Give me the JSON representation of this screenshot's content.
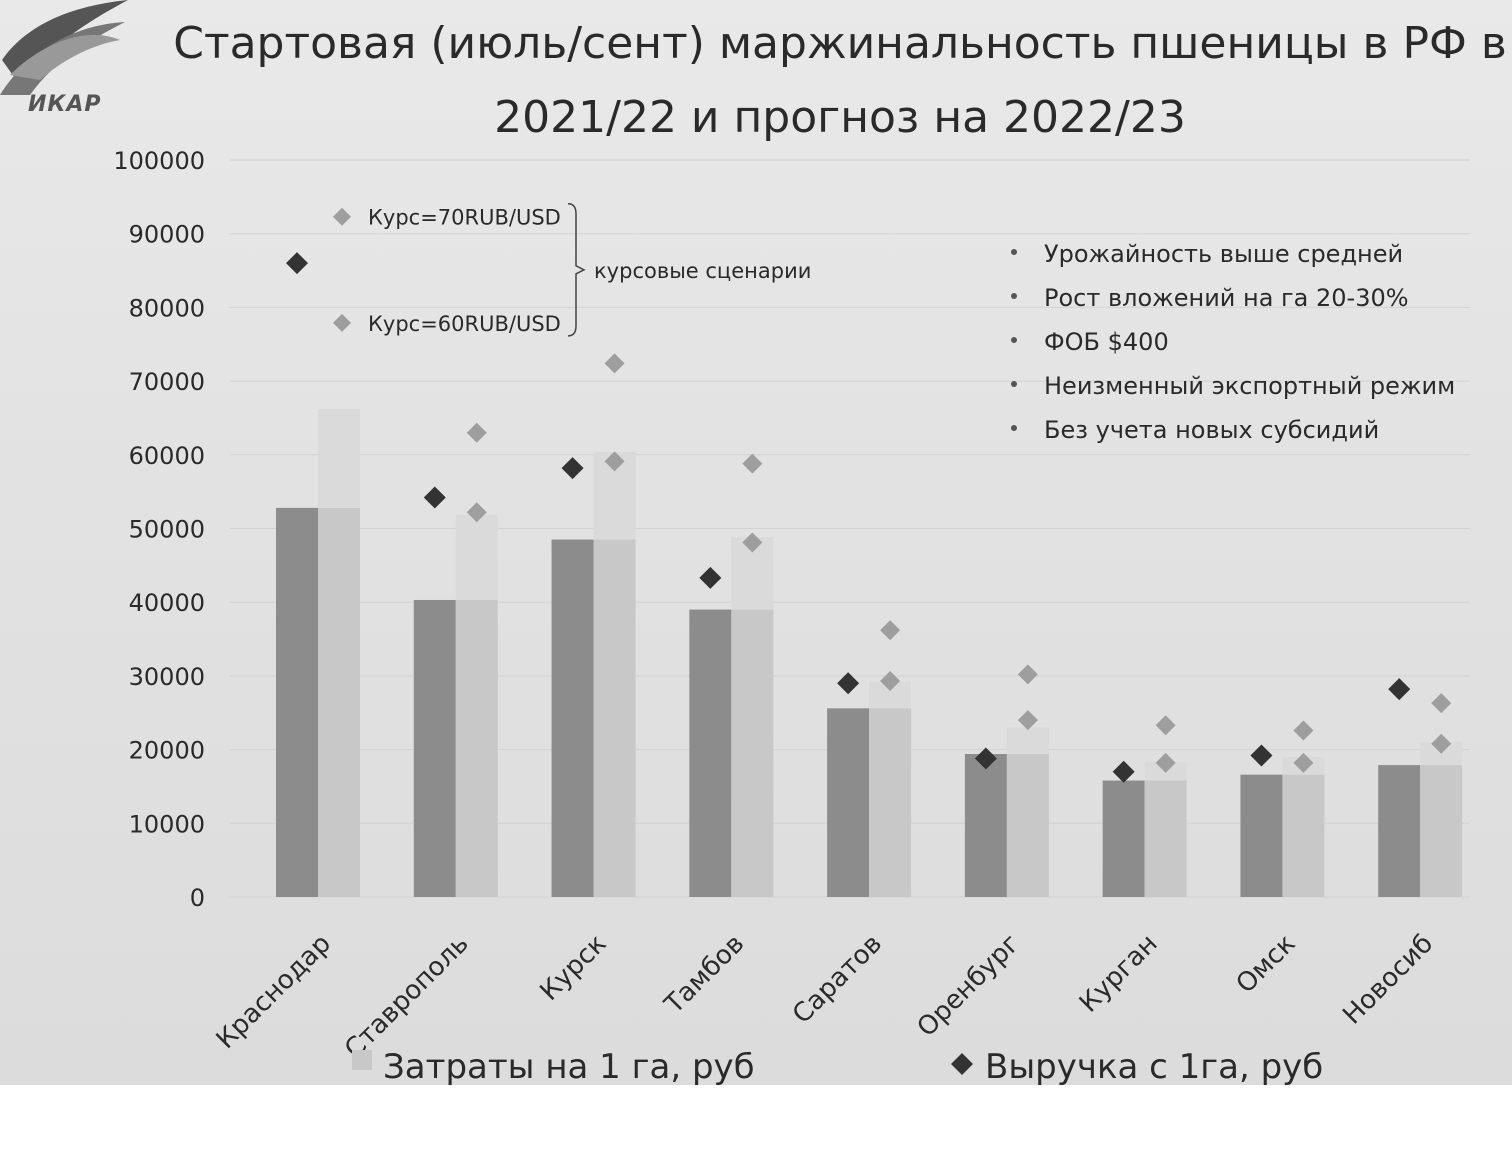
{
  "header": {
    "logo_text": "ИКАР",
    "title_line1": "Стартовая (июль/сент) маржинальность пшеницы в РФ в",
    "title_line2": "2021/22 и прогноз на 2022/23"
  },
  "chart_data": {
    "type": "bar",
    "title": "Стартовая (июль/сент) маржинальность пшеницы в РФ в 2021/22 и прогноз на 2022/23",
    "categories": [
      "Краснодар",
      "Ставрополь",
      "Курск",
      "Тамбов",
      "Саратов",
      "Оренбург",
      "Курган",
      "Омск",
      "Новосиб"
    ],
    "ylim": [
      0,
      100000
    ],
    "yticks": [
      0,
      10000,
      20000,
      30000,
      40000,
      50000,
      60000,
      70000,
      80000,
      90000,
      100000
    ],
    "grid": true,
    "series": [
      {
        "name": "Затраты на 1 га, руб",
        "kind": "bar",
        "period": "2021/22",
        "color": "#8c8c8c",
        "values": [
          52800,
          40300,
          48500,
          39000,
          25600,
          19400,
          15800,
          16600,
          17900
        ]
      },
      {
        "kind": "bar",
        "period": "2022/23",
        "color": "#c8c8c8",
        "values": [
          52800,
          40300,
          48500,
          39000,
          25600,
          19400,
          15800,
          16600,
          17900
        ]
      },
      {
        "kind": "bar-increment",
        "period": "2022/23",
        "color": "#dadada",
        "values": [
          13400,
          11600,
          11900,
          9800,
          3600,
          3600,
          2500,
          2400,
          3100
        ]
      },
      {
        "name": "Выручка с 1га, руб",
        "kind": "marker",
        "period": "2021/22",
        "color": "#333333",
        "values": [
          86000,
          54200,
          58200,
          43300,
          29000,
          18800,
          17000,
          19200,
          28200
        ]
      },
      {
        "name": "Курс=70RUB/USD",
        "kind": "marker",
        "period": "2022/23",
        "color": "#9e9e9e",
        "values": [
          null,
          63000,
          72400,
          58800,
          36200,
          30200,
          23300,
          22600,
          26300
        ]
      },
      {
        "name": "Курс=60RUB/USD",
        "kind": "marker",
        "period": "2022/23",
        "color": "#9e9e9e",
        "values": [
          null,
          52200,
          59100,
          48100,
          29300,
          24000,
          18200,
          18200,
          20800
        ]
      }
    ],
    "scenario_legend": {
      "items": [
        "Курс=70RUB/USD",
        "Курс=60RUB/USD"
      ],
      "brace_label": "курсовые сценарии",
      "sample_values": [
        92300,
        77900
      ]
    },
    "notes": [
      "Урожайность выше средней",
      "Рост вложений на га 20-30%",
      "ФОБ $400",
      "Неизменный экспортный режим",
      "Без учета новых субсидий"
    ],
    "legend": {
      "position": "bottom",
      "items": [
        "Затраты на 1 га, руб",
        "Выручка с 1га, руб"
      ]
    }
  },
  "colors": {
    "background": "#e4e4e4",
    "text": "#2a2a2a",
    "bar_2021": "#8c8c8c",
    "bar_2022": "#c8c8c8",
    "bar_increment": "#dadada",
    "marker_dark": "#333333",
    "marker_light": "#9e9e9e",
    "grid": "#d2d2d2"
  }
}
